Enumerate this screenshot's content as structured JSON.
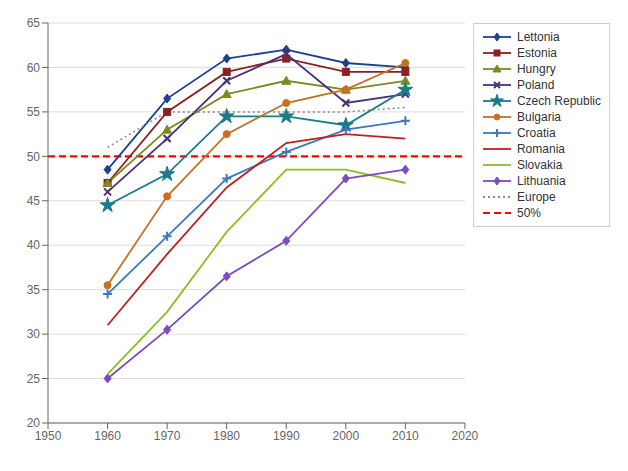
{
  "chart_data": {
    "type": "line",
    "x": [
      1960,
      1970,
      1980,
      1990,
      2000,
      2010
    ],
    "series": [
      {
        "name": "Lettonia",
        "color": "#1F3F8F",
        "marker": "diamond",
        "values": [
          48.5,
          56.5,
          61.0,
          62.0,
          60.5,
          60.0
        ]
      },
      {
        "name": "Estonia",
        "color": "#8B2020",
        "marker": "square",
        "values": [
          47.0,
          55.0,
          59.5,
          61.0,
          59.5,
          59.5
        ]
      },
      {
        "name": "Hungry",
        "color": "#7B8B20",
        "marker": "triangle",
        "values": [
          47.0,
          53.0,
          57.0,
          58.5,
          57.5,
          58.5
        ]
      },
      {
        "name": "Poland",
        "color": "#4B2F7B",
        "marker": "x",
        "values": [
          46.0,
          52.0,
          58.5,
          61.5,
          56.0,
          57.0
        ]
      },
      {
        "name": "Czech Republic",
        "color": "#1A7B8B",
        "marker": "star",
        "values": [
          44.5,
          48.0,
          54.5,
          54.5,
          53.5,
          57.5
        ]
      },
      {
        "name": "Bulgaria",
        "color": "#C87020",
        "marker": "circle",
        "values": [
          35.5,
          45.5,
          52.5,
          56.0,
          57.5,
          60.5
        ]
      },
      {
        "name": "Croatia",
        "color": "#3C7ABF",
        "marker": "plus",
        "values": [
          34.5,
          41.0,
          47.5,
          50.5,
          53.0,
          54.0
        ]
      },
      {
        "name": "Romania",
        "color": "#BF2020",
        "marker": "none",
        "values": [
          31.0,
          39.0,
          46.5,
          51.5,
          52.5,
          52.0
        ]
      },
      {
        "name": "Slovakia",
        "color": "#8BBF20",
        "marker": "none",
        "values": [
          25.5,
          32.5,
          41.5,
          48.5,
          48.5,
          47.0
        ]
      },
      {
        "name": "Lithuania",
        "color": "#7B4BBF",
        "marker": "diamond",
        "values": [
          25.0,
          30.5,
          36.5,
          40.5,
          47.5,
          48.5
        ]
      },
      {
        "name": "Europe",
        "color": "#888888",
        "marker": "none",
        "line_style": "dotted",
        "values": [
          51.0,
          55.0,
          55.0,
          55.0,
          55.0,
          55.5
        ]
      }
    ],
    "hlines": [
      {
        "name": "50%",
        "value": 50.0,
        "color": "red",
        "line_style": "dashed"
      }
    ],
    "xlim": [
      1950,
      2020
    ],
    "xticks": [
      1950,
      1960,
      1970,
      1980,
      1990,
      2000,
      2010,
      2020
    ],
    "ylim": [
      20,
      65
    ],
    "yticks": [
      20,
      25,
      30,
      35,
      40,
      45,
      50,
      55,
      60,
      65
    ],
    "grid": true,
    "legend": "right"
  }
}
